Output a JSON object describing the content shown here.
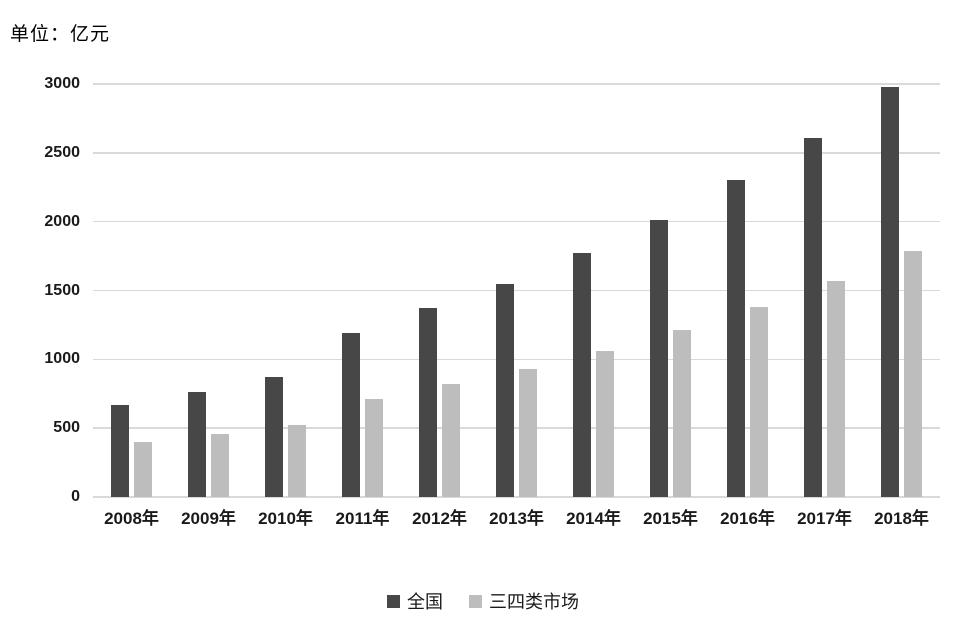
{
  "chart_data": {
    "type": "bar",
    "title": "单位：亿元",
    "xlabel": "",
    "ylabel": "",
    "categories": [
      "2008年",
      "2009年",
      "2010年",
      "2011年",
      "2012年",
      "2013年",
      "2014年",
      "2015年",
      "2016年",
      "2017年",
      "2018年"
    ],
    "series": [
      {
        "name": "全国",
        "color": "#474747",
        "values": [
          670,
          760,
          870,
          1190,
          1370,
          1550,
          1770,
          2010,
          2300,
          2610,
          2980
        ]
      },
      {
        "name": "三四类市场",
        "color": "#bdbdbd",
        "values": [
          400,
          460,
          520,
          710,
          820,
          930,
          1060,
          1210,
          1380,
          1570,
          1790
        ]
      }
    ],
    "ylim": [
      0,
      3000
    ],
    "y_ticks": [
      0,
      500,
      1000,
      1500,
      2000,
      2500,
      3000
    ],
    "grid": true,
    "legend_position": "bottom",
    "colors": {
      "gridline": "#d9d9d9",
      "axis_text": "#1a1a1a"
    }
  }
}
